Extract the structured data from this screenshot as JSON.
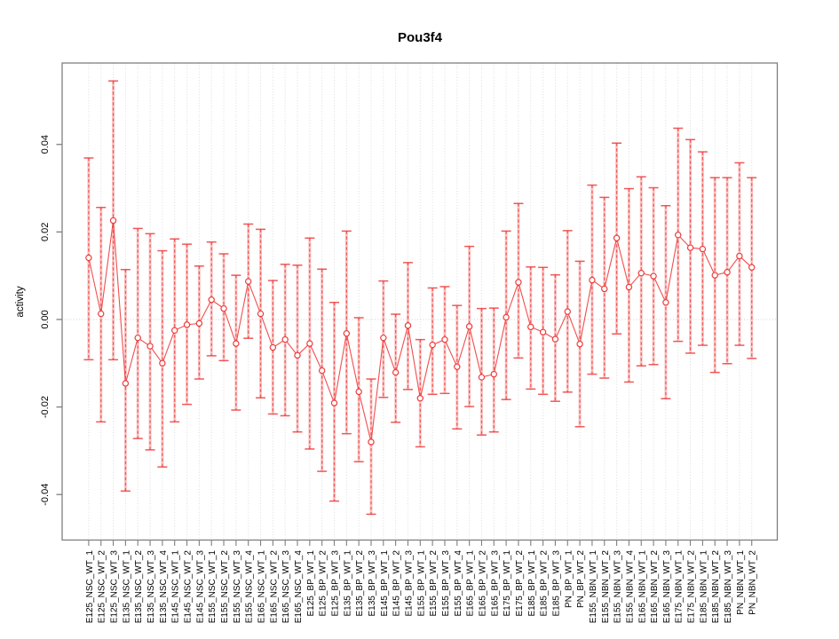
{
  "figure": {
    "title": "Pou3f4",
    "y_axis_label": "activity"
  },
  "chart_data": {
    "type": "scatter",
    "subtype": "points-with-error-bars-connected-by-line",
    "title": "Pou3f4",
    "xlabel": "",
    "ylabel": "activity",
    "legend": "none",
    "grid": "vertical dotted gridline at every category; dotted horizontal reference line at 0",
    "ylim": [
      -0.0504,
      0.0586
    ],
    "yticks": [
      0.04,
      0.02,
      0.0,
      -0.02,
      -0.04
    ],
    "ytick_labels": [
      "0.04",
      "0.02",
      "0.00",
      "-0.02",
      "-0.04"
    ],
    "x_tick_label_rotation_degrees": -90,
    "categories": [
      "E125_NSC_WT_1",
      "E125_NSC_WT_2",
      "E125_NSC_WT_3",
      "E135_NSC_WT_1",
      "E135_NSC_WT_2",
      "E135_NSC_WT_3",
      "E135_NSC_WT_4",
      "E145_NSC_WT_1",
      "E145_NSC_WT_2",
      "E145_NSC_WT_3",
      "E155_NSC_WT_1",
      "E155_NSC_WT_2",
      "E155_NSC_WT_3",
      "E155_NSC_WT_4",
      "E165_NSC_WT_1",
      "E165_NSC_WT_2",
      "E165_NSC_WT_3",
      "E165_NSC_WT_4",
      "E125_BP_WT_1",
      "E125_BP_WT_2",
      "E125_BP_WT_3",
      "E135_BP_WT_1",
      "E135_BP_WT_2",
      "E135_BP_WT_3",
      "E145_BP_WT_1",
      "E145_BP_WT_2",
      "E145_BP_WT_3",
      "E155_BP_WT_1",
      "E155_BP_WT_2",
      "E155_BP_WT_3",
      "E155_BP_WT_4",
      "E165_BP_WT_1",
      "E165_BP_WT_2",
      "E165_BP_WT_3",
      "E175_BP_WT_1",
      "E175_BP_WT_2",
      "E185_BP_WT_1",
      "E185_BP_WT_2",
      "E185_BP_WT_3",
      "PN_BP_WT_1",
      "PN_BP_WT_2",
      "E155_NBN_WT_1",
      "E155_NBN_WT_2",
      "E155_NBN_WT_3",
      "E155_NBN_WT_4",
      "E165_NBN_WT_1",
      "E165_NBN_WT_2",
      "E165_NBN_WT_3",
      "E175_NBN_WT_1",
      "E175_NBN_WT_2",
      "E185_NBN_WT_1",
      "E185_NBN_WT_2",
      "E185_NBN_WT_3",
      "PN_NBN_WT_1",
      "PN_NBN_WT_2"
    ],
    "series": [
      {
        "name": "activity",
        "marker": "open-circle",
        "mean": [
          0.0141,
          0.0013,
          0.0226,
          -0.0146,
          -0.0042,
          -0.0061,
          -0.01,
          -0.0025,
          -0.0012,
          -0.0009,
          0.0045,
          0.0025,
          -0.0055,
          0.0087,
          0.0013,
          -0.0064,
          -0.0046,
          -0.0082,
          -0.0055,
          -0.0117,
          -0.0191,
          -0.0032,
          -0.0165,
          -0.028,
          -0.0042,
          -0.0121,
          -0.0014,
          -0.018,
          -0.0058,
          -0.0046,
          -0.0108,
          -0.0016,
          -0.0132,
          -0.0125,
          0.0005,
          0.0085,
          -0.0017,
          -0.0029,
          -0.0045,
          0.0018,
          -0.0056,
          0.009,
          0.007,
          0.0186,
          0.0074,
          0.0106,
          0.0099,
          0.0039,
          0.0193,
          0.0164,
          0.0161,
          0.0101,
          0.0108,
          0.0145,
          0.0119
        ],
        "ci_low": [
          -0.0092,
          -0.0234,
          -0.0092,
          -0.0392,
          -0.0272,
          -0.0298,
          -0.0337,
          -0.0234,
          -0.0194,
          -0.0136,
          -0.0083,
          -0.0094,
          -0.0207,
          -0.0043,
          -0.0179,
          -0.0216,
          -0.022,
          -0.0257,
          -0.0296,
          -0.0347,
          -0.0415,
          -0.0261,
          -0.0325,
          -0.0445,
          -0.0178,
          -0.0235,
          -0.016,
          -0.0291,
          -0.0171,
          -0.0169,
          -0.025,
          -0.0199,
          -0.0264,
          -0.0257,
          -0.0183,
          -0.0088,
          -0.0159,
          -0.0171,
          -0.0187,
          -0.0166,
          -0.0245,
          -0.0125,
          -0.0134,
          -0.0033,
          -0.0143,
          -0.0106,
          -0.0103,
          -0.0181,
          -0.005,
          -0.0077,
          -0.0059,
          -0.0121,
          -0.0101,
          -0.0059,
          -0.0089
        ],
        "ci_high": [
          0.0369,
          0.0256,
          0.0545,
          0.0114,
          0.0208,
          0.0196,
          0.0157,
          0.0184,
          0.0172,
          0.0122,
          0.0177,
          0.015,
          0.0101,
          0.0218,
          0.0206,
          0.0089,
          0.0126,
          0.0124,
          0.0186,
          0.0115,
          0.0039,
          0.0202,
          0.0004,
          -0.0136,
          0.0088,
          0.0012,
          0.013,
          -0.0046,
          0.0072,
          0.0075,
          0.0032,
          0.0167,
          0.0025,
          0.0026,
          0.0202,
          0.0265,
          0.012,
          0.0119,
          0.0102,
          0.0203,
          0.0133,
          0.0307,
          0.0279,
          0.0403,
          0.0299,
          0.0326,
          0.0301,
          0.026,
          0.0437,
          0.0411,
          0.0383,
          0.0324,
          0.0324,
          0.0358,
          0.0324
        ]
      }
    ],
    "colors": {
      "series": "#ee3b3b",
      "error_bar_underlay": "#f89191",
      "gridline": "#dcdcdc",
      "zero_line": "#cfcfcf",
      "axis": "#7f7f7f",
      "text": "#000000",
      "background": "#ffffff"
    }
  }
}
